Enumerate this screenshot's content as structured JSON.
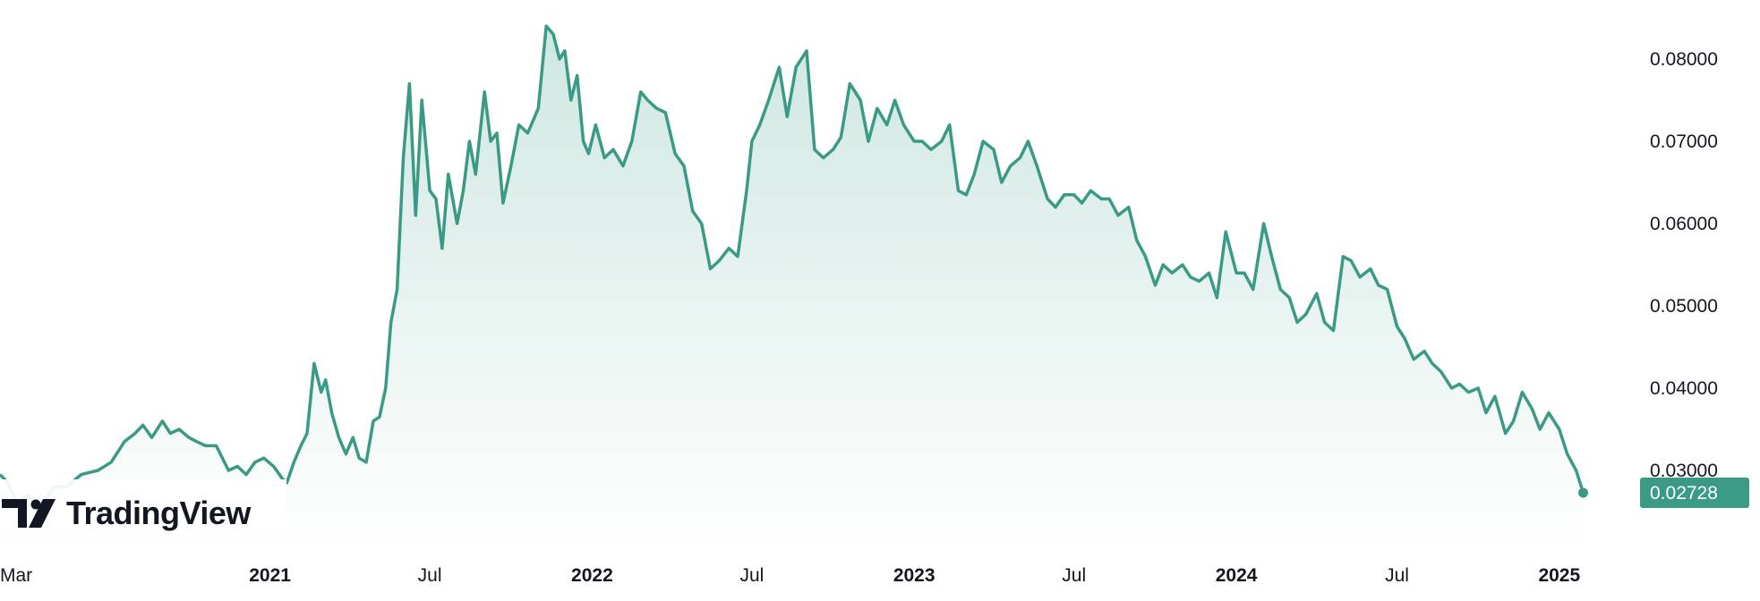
{
  "brand": {
    "logo_text": "TradingView",
    "logo_mark": "TV-logo-icon"
  },
  "colors": {
    "line": "#3a9a86",
    "fill_top": "#cfe7e1",
    "fill_bottom": "#ffffff",
    "label_bg": "#3a9a86",
    "text": "#131722"
  },
  "chart_data": {
    "type": "area",
    "title": "",
    "xlabel": "",
    "ylabel": "",
    "y_range": [
      0.0225,
      0.085
    ],
    "x_range": [
      "2020-03-01",
      "2025-03-01"
    ],
    "y_ticks": [
      "0.08000",
      "0.07000",
      "0.06000",
      "0.05000",
      "0.04000",
      "0.03000"
    ],
    "y_tick_values": [
      0.08,
      0.07,
      0.06,
      0.05,
      0.04,
      0.03
    ],
    "x_ticks": [
      {
        "label": "Mar",
        "date": "2020-03-01",
        "major": false
      },
      {
        "label": "2021",
        "date": "2021-01-01",
        "major": true
      },
      {
        "label": "Jul",
        "date": "2021-07-01",
        "major": false
      },
      {
        "label": "2022",
        "date": "2022-01-01",
        "major": true
      },
      {
        "label": "Jul",
        "date": "2022-07-01",
        "major": false
      },
      {
        "label": "2023",
        "date": "2023-01-01",
        "major": true
      },
      {
        "label": "Jul",
        "date": "2023-07-01",
        "major": false
      },
      {
        "label": "2024",
        "date": "2024-01-01",
        "major": true
      },
      {
        "label": "Jul",
        "date": "2024-07-01",
        "major": false
      },
      {
        "label": "2025",
        "date": "2025-01-01",
        "major": true
      }
    ],
    "last_value_label": "0.02728",
    "last_value": 0.02728,
    "grid": false,
    "legend": "none",
    "series": [
      {
        "name": "",
        "x": [
          "2020-03-01",
          "2020-03-10",
          "2020-03-20",
          "2020-04-01",
          "2020-04-15",
          "2020-05-01",
          "2020-05-15",
          "2020-06-01",
          "2020-06-20",
          "2020-07-05",
          "2020-07-20",
          "2020-08-01",
          "2020-08-10",
          "2020-08-20",
          "2020-09-01",
          "2020-09-10",
          "2020-09-20",
          "2020-10-01",
          "2020-10-10",
          "2020-10-20",
          "2020-11-01",
          "2020-11-15",
          "2020-11-25",
          "2020-12-05",
          "2020-12-15",
          "2020-12-25",
          "2021-01-05",
          "2021-01-15",
          "2021-01-20",
          "2021-01-28",
          "2021-02-05",
          "2021-02-12",
          "2021-02-20",
          "2021-02-28",
          "2021-03-05",
          "2021-03-12",
          "2021-03-20",
          "2021-03-28",
          "2021-04-05",
          "2021-04-12",
          "2021-04-20",
          "2021-04-28",
          "2021-05-05",
          "2021-05-12",
          "2021-05-18",
          "2021-05-25",
          "2021-06-01",
          "2021-06-08",
          "2021-06-15",
          "2021-06-22",
          "2021-07-01",
          "2021-07-08",
          "2021-07-15",
          "2021-07-22",
          "2021-08-01",
          "2021-08-08",
          "2021-08-15",
          "2021-08-22",
          "2021-09-01",
          "2021-09-08",
          "2021-09-15",
          "2021-09-22",
          "2021-10-01",
          "2021-10-10",
          "2021-10-20",
          "2021-11-01",
          "2021-11-10",
          "2021-11-18",
          "2021-11-25",
          "2021-12-01",
          "2021-12-08",
          "2021-12-15",
          "2021-12-22",
          "2021-12-28",
          "2022-01-05",
          "2022-01-15",
          "2022-01-25",
          "2022-02-05",
          "2022-02-15",
          "2022-02-25",
          "2022-03-05",
          "2022-03-15",
          "2022-03-25",
          "2022-04-05",
          "2022-04-15",
          "2022-04-25",
          "2022-05-05",
          "2022-05-15",
          "2022-05-25",
          "2022-06-05",
          "2022-06-15",
          "2022-06-25",
          "2022-07-01",
          "2022-07-10",
          "2022-07-20",
          "2022-08-01",
          "2022-08-10",
          "2022-08-20",
          "2022-09-01",
          "2022-09-10",
          "2022-09-20",
          "2022-10-01",
          "2022-10-10",
          "2022-10-20",
          "2022-11-01",
          "2022-11-10",
          "2022-11-20",
          "2022-12-01",
          "2022-12-10",
          "2022-12-20",
          "2023-01-01",
          "2023-01-10",
          "2023-01-20",
          "2023-02-01",
          "2023-02-10",
          "2023-02-20",
          "2023-03-01",
          "2023-03-10",
          "2023-03-20",
          "2023-04-01",
          "2023-04-10",
          "2023-04-20",
          "2023-05-01",
          "2023-05-10",
          "2023-05-20",
          "2023-06-01",
          "2023-06-10",
          "2023-06-20",
          "2023-07-01",
          "2023-07-10",
          "2023-07-20",
          "2023-08-01",
          "2023-08-10",
          "2023-08-20",
          "2023-09-01",
          "2023-09-10",
          "2023-09-20",
          "2023-10-01",
          "2023-10-10",
          "2023-10-20",
          "2023-11-01",
          "2023-11-10",
          "2023-11-20",
          "2023-12-01",
          "2023-12-10",
          "2023-12-20",
          "2024-01-01",
          "2024-01-10",
          "2024-01-20",
          "2024-02-01",
          "2024-02-10",
          "2024-02-20",
          "2024-03-01",
          "2024-03-10",
          "2024-03-20",
          "2024-04-01",
          "2024-04-10",
          "2024-04-20",
          "2024-05-01",
          "2024-05-10",
          "2024-05-20",
          "2024-06-01",
          "2024-06-10",
          "2024-06-20",
          "2024-07-01",
          "2024-07-10",
          "2024-07-20",
          "2024-08-01",
          "2024-08-10",
          "2024-08-20",
          "2024-09-01",
          "2024-09-10",
          "2024-09-20",
          "2024-10-01",
          "2024-10-10",
          "2024-10-20",
          "2024-11-01",
          "2024-11-10",
          "2024-11-20",
          "2024-12-01",
          "2024-12-10",
          "2024-12-20",
          "2025-01-01",
          "2025-01-10",
          "2025-01-20",
          "2025-01-28"
        ],
        "values": [
          0.0295,
          0.0285,
          0.026,
          0.027,
          0.0255,
          0.028,
          0.028,
          0.0295,
          0.03,
          0.031,
          0.0335,
          0.0345,
          0.0355,
          0.034,
          0.036,
          0.0345,
          0.035,
          0.034,
          0.0335,
          0.033,
          0.033,
          0.03,
          0.0305,
          0.0295,
          0.031,
          0.0315,
          0.0305,
          0.029,
          0.0285,
          0.031,
          0.033,
          0.0345,
          0.043,
          0.0395,
          0.041,
          0.037,
          0.034,
          0.032,
          0.034,
          0.0315,
          0.031,
          0.036,
          0.0365,
          0.04,
          0.048,
          0.052,
          0.068,
          0.077,
          0.061,
          0.075,
          0.064,
          0.063,
          0.057,
          0.066,
          0.06,
          0.064,
          0.07,
          0.066,
          0.076,
          0.07,
          0.071,
          0.0625,
          0.067,
          0.072,
          0.071,
          0.074,
          0.084,
          0.083,
          0.08,
          0.081,
          0.075,
          0.078,
          0.07,
          0.0685,
          0.072,
          0.068,
          0.069,
          0.067,
          0.07,
          0.076,
          0.075,
          0.074,
          0.0735,
          0.0685,
          0.067,
          0.0615,
          0.06,
          0.0545,
          0.0555,
          0.057,
          0.056,
          0.064,
          0.07,
          0.072,
          0.075,
          0.079,
          0.073,
          0.079,
          0.081,
          0.069,
          0.068,
          0.069,
          0.0705,
          0.077,
          0.075,
          0.07,
          0.074,
          0.072,
          0.075,
          0.072,
          0.07,
          0.07,
          0.069,
          0.07,
          0.072,
          0.064,
          0.0635,
          0.066,
          0.07,
          0.069,
          0.065,
          0.067,
          0.068,
          0.07,
          0.067,
          0.063,
          0.062,
          0.0635,
          0.0635,
          0.0625,
          0.064,
          0.063,
          0.063,
          0.061,
          0.062,
          0.058,
          0.056,
          0.0525,
          0.055,
          0.054,
          0.055,
          0.0535,
          0.053,
          0.054,
          0.051,
          0.059,
          0.054,
          0.054,
          0.052,
          0.06,
          0.056,
          0.052,
          0.051,
          0.048,
          0.049,
          0.0515,
          0.048,
          0.047,
          0.056,
          0.0555,
          0.0535,
          0.0545,
          0.0525,
          0.052,
          0.0475,
          0.046,
          0.0435,
          0.0445,
          0.043,
          0.042,
          0.04,
          0.0405,
          0.0395,
          0.04,
          0.037,
          0.039,
          0.0345,
          0.036,
          0.0395,
          0.0375,
          0.035,
          0.037,
          0.035,
          0.032,
          0.03,
          0.02728
        ]
      }
    ]
  }
}
